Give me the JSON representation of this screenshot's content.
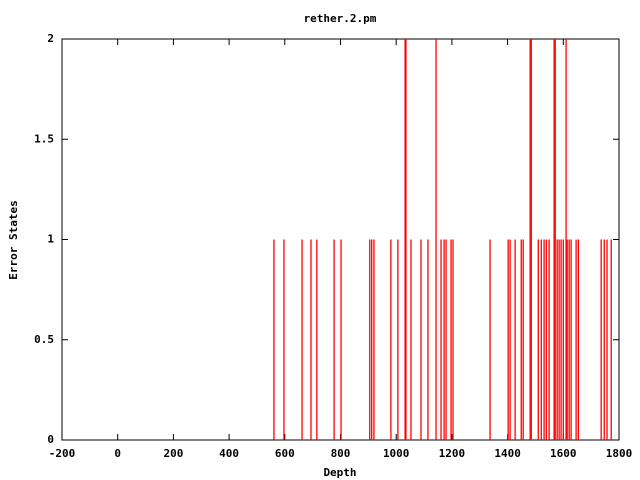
{
  "chart_data": {
    "type": "impulse",
    "title": "rether.2.pm",
    "x_label": "Depth",
    "y_label": "Error States",
    "color": "#ff0000",
    "x": [
      561,
      597,
      662,
      694,
      715,
      777,
      802,
      905,
      912,
      920,
      981,
      1006,
      1032,
      1035,
      1053,
      1089,
      1114,
      1143,
      1161,
      1172,
      1179,
      1197,
      1204,
      1337,
      1402,
      1409,
      1427,
      1449,
      1456,
      1481,
      1485,
      1510,
      1521,
      1531,
      1539,
      1549,
      1567,
      1571,
      1578,
      1585,
      1592,
      1600,
      1610,
      1614,
      1621,
      1628,
      1646,
      1654,
      1736,
      1747,
      1757,
      1772
    ],
    "values": [
      1,
      1,
      1,
      1,
      1,
      1,
      1,
      1,
      1,
      1,
      1,
      1,
      2,
      2,
      1,
      1,
      1,
      2,
      1,
      1,
      1,
      1,
      1,
      1,
      1,
      1,
      1,
      1,
      1,
      2,
      2,
      1,
      1,
      1,
      1,
      1,
      2,
      2,
      1,
      1,
      1,
      1,
      2,
      1,
      1,
      1,
      1,
      1,
      1,
      1,
      1,
      1
    ],
    "xlim": [
      -200,
      1800
    ],
    "xticks": [
      -200,
      0,
      200,
      400,
      600,
      800,
      1000,
      1200,
      1400,
      1600,
      1800
    ],
    "ylim": [
      0,
      2
    ],
    "yticks": [
      0,
      0.5,
      1,
      1.5,
      2
    ]
  }
}
